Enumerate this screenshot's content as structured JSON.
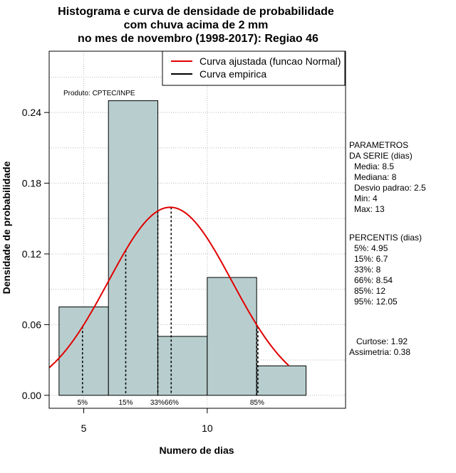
{
  "chart_data": {
    "type": "bar",
    "title_lines": [
      "Histograma e curva de densidade de probabilidade",
      "com chuva acima de 2 mm",
      "no mes de novembro (1998-2017): Regiao 46"
    ],
    "xlabel": "Numero de dias",
    "ylabel": "Densidade de probabilidade",
    "xlim": [
      3.6,
      15.6
    ],
    "ylim": [
      -0.011,
      0.292
    ],
    "x_ticks": [
      5,
      10
    ],
    "y_ticks": [
      0.0,
      0.06,
      0.12,
      0.18,
      0.24
    ],
    "y_tick_labels": [
      "0.00",
      "0.06",
      "0.12",
      "0.18",
      "0.24"
    ],
    "grid": true,
    "bins": [
      {
        "x0": 4,
        "x1": 6,
        "density": 0.075
      },
      {
        "x0": 6,
        "x1": 8,
        "density": 0.25
      },
      {
        "x0": 8,
        "x1": 10,
        "density": 0.05
      },
      {
        "x0": 10,
        "x1": 12,
        "density": 0.1
      },
      {
        "x0": 12,
        "x1": 14,
        "density": 0.025
      }
    ],
    "fitted_curve": {
      "mean": 8.5,
      "sd": 2.5,
      "x_from": 3.6,
      "x_to": 13.3
    },
    "percentile_lines": [
      {
        "label": "5%",
        "x": 4.95
      },
      {
        "label": "15%",
        "x": 6.7
      },
      {
        "label": "33%",
        "x": 8
      },
      {
        "label": "66%",
        "x": 8.54
      },
      {
        "label": "85%",
        "x": 12
      },
      {
        "label": "95%",
        "x": 12.05
      }
    ],
    "percentile_tick_labels": [
      "5%",
      "15%",
      "33%66%",
      "85%"
    ],
    "legend": {
      "position": "top-right",
      "entries": [
        {
          "label": "Curva ajustada (funcao Normal)",
          "color": "#e00000"
        },
        {
          "label": "Curva empirica",
          "color": "#000000"
        }
      ]
    },
    "annotation": "Produto: CPTEC/INPE",
    "colors": {
      "bar_fill": "#b8cece",
      "curve": "#e00000",
      "grid": "#bbbbbb"
    }
  },
  "stats_panel": {
    "params_lines": [
      "PARAMETROS",
      "DA SERIE (dias)",
      "Media: 8.5",
      "Mediana: 8",
      "Desvio padrao: 2.5",
      "Min: 4",
      "Max: 13"
    ],
    "percentis_lines": [
      "PERCENTIS (dias)",
      "5%: 4.95",
      "15%: 6.7",
      "33%: 8",
      "66%: 8.54",
      "85%: 12",
      "95%: 12.05"
    ],
    "shape_lines": [
      "Curtose: 1.92",
      "Assimetria: 0.38"
    ]
  }
}
